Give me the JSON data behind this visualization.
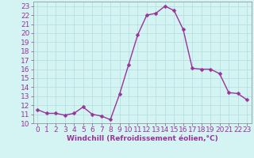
{
  "x": [
    0,
    1,
    2,
    3,
    4,
    5,
    6,
    7,
    8,
    9,
    10,
    11,
    12,
    13,
    14,
    15,
    16,
    17,
    18,
    19,
    20,
    21,
    22,
    23
  ],
  "y": [
    11.5,
    11.1,
    11.1,
    10.9,
    11.1,
    11.8,
    11.0,
    10.8,
    10.4,
    13.2,
    16.5,
    19.8,
    22.0,
    22.2,
    23.0,
    22.5,
    20.4,
    16.1,
    16.0,
    16.0,
    15.5,
    13.4,
    13.3,
    12.6
  ],
  "line_color": "#993399",
  "marker_color": "#993399",
  "background_color": "#d4f4f4",
  "grid_color": "#b8e0e0",
  "xlabel": "Windchill (Refroidissement éolien,°C)",
  "xlabel_color": "#993399",
  "tick_color": "#993399",
  "ylim": [
    10,
    23.5
  ],
  "xlim": [
    -0.5,
    23.5
  ],
  "yticks": [
    10,
    11,
    12,
    13,
    14,
    15,
    16,
    17,
    18,
    19,
    20,
    21,
    22,
    23
  ],
  "xticks": [
    0,
    1,
    2,
    3,
    4,
    5,
    6,
    7,
    8,
    9,
    10,
    11,
    12,
    13,
    14,
    15,
    16,
    17,
    18,
    19,
    20,
    21,
    22,
    23
  ],
  "font_size": 6.5,
  "line_width": 1.0,
  "marker_size": 2.5
}
